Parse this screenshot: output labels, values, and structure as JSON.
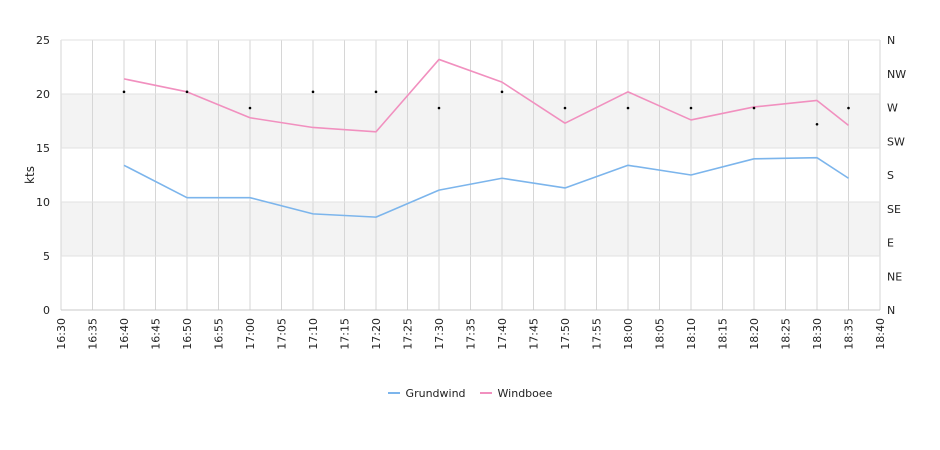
{
  "chart_data": {
    "type": "line",
    "x": [
      "16:40",
      "16:50",
      "17:00",
      "17:10",
      "17:20",
      "17:30",
      "17:40",
      "17:50",
      "18:00",
      "18:10",
      "18:20",
      "18:30",
      "18:35"
    ],
    "x_ticks": [
      "16:30",
      "16:35",
      "16:40",
      "16:45",
      "16:50",
      "16:55",
      "17:00",
      "17:05",
      "17:10",
      "17:15",
      "17:20",
      "17:25",
      "17:30",
      "17:35",
      "17:40",
      "17:45",
      "17:50",
      "17:55",
      "18:00",
      "18:05",
      "18:10",
      "18:15",
      "18:20",
      "18:25",
      "18:30",
      "18:35",
      "18:40"
    ],
    "ylabel": "kts",
    "ylim": [
      0,
      25
    ],
    "y_ticks": [
      "0",
      "5",
      "10",
      "15",
      "20",
      "25"
    ],
    "y2_ticks": [
      "N",
      "NE",
      "E",
      "SE",
      "S",
      "SW",
      "W",
      "NW",
      "N"
    ],
    "shaded_bands": [
      [
        5,
        10
      ],
      [
        15,
        20
      ]
    ],
    "series": [
      {
        "name": "Grundwind",
        "color": "#7cb5ec",
        "values": [
          13.4,
          10.4,
          10.4,
          8.9,
          8.6,
          11.1,
          12.2,
          11.3,
          13.4,
          12.5,
          14.0,
          14.1,
          12.2
        ]
      },
      {
        "name": "Windboee",
        "color": "#f190bf",
        "values": [
          21.4,
          20.2,
          17.8,
          16.9,
          16.5,
          23.2,
          21.1,
          17.3,
          20.2,
          17.6,
          18.8,
          19.4,
          17.1
        ]
      }
    ],
    "direction_markers": [
      20.2,
      20.2,
      18.7,
      20.2,
      20.2,
      18.7,
      20.2,
      18.7,
      18.7,
      18.7,
      18.7,
      17.2,
      18.7
    ],
    "legend_position": "bottom-center",
    "grid": true
  }
}
